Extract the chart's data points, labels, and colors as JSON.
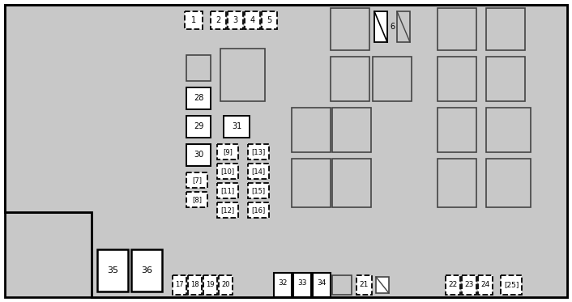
{
  "bg_color": "#c8c8c8",
  "fig_w": 7.06,
  "fig_h": 3.73,
  "dpi": 100,
  "gray": "#c8c8c8",
  "white": "#ffffff",
  "dark_gray_edge": "#444444",
  "black": "#000000",
  "mid_gray": "#aaaaaa"
}
